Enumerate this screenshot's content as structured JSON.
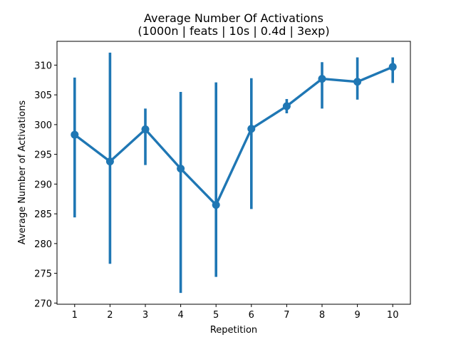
{
  "chart_data": {
    "type": "line",
    "title": "Average Number Of Activations",
    "subtitle": "(1000n | feats | 10s | 0.4d | 3exp)",
    "xlabel": "Repetition",
    "ylabel": "Average Number of Activations",
    "categories": [
      "1",
      "2",
      "3",
      "4",
      "5",
      "6",
      "7",
      "8",
      "9",
      "10"
    ],
    "ylim": [
      269.8,
      314.0
    ],
    "yticks": [
      270,
      275,
      280,
      285,
      290,
      295,
      300,
      305,
      310
    ],
    "grid": false,
    "legend": "none",
    "color": "#1f77b4",
    "series": [
      {
        "values": [
          298.3,
          293.8,
          299.2,
          292.6,
          286.5,
          299.3,
          303.1,
          307.7,
          307.2,
          309.7
        ],
        "err_low": [
          284.4,
          276.6,
          293.2,
          271.7,
          274.4,
          285.8,
          301.9,
          302.7,
          304.2,
          307.0
        ],
        "err_high": [
          307.9,
          312.1,
          302.7,
          305.5,
          307.1,
          307.8,
          304.3,
          310.5,
          311.3,
          311.3
        ]
      }
    ]
  }
}
